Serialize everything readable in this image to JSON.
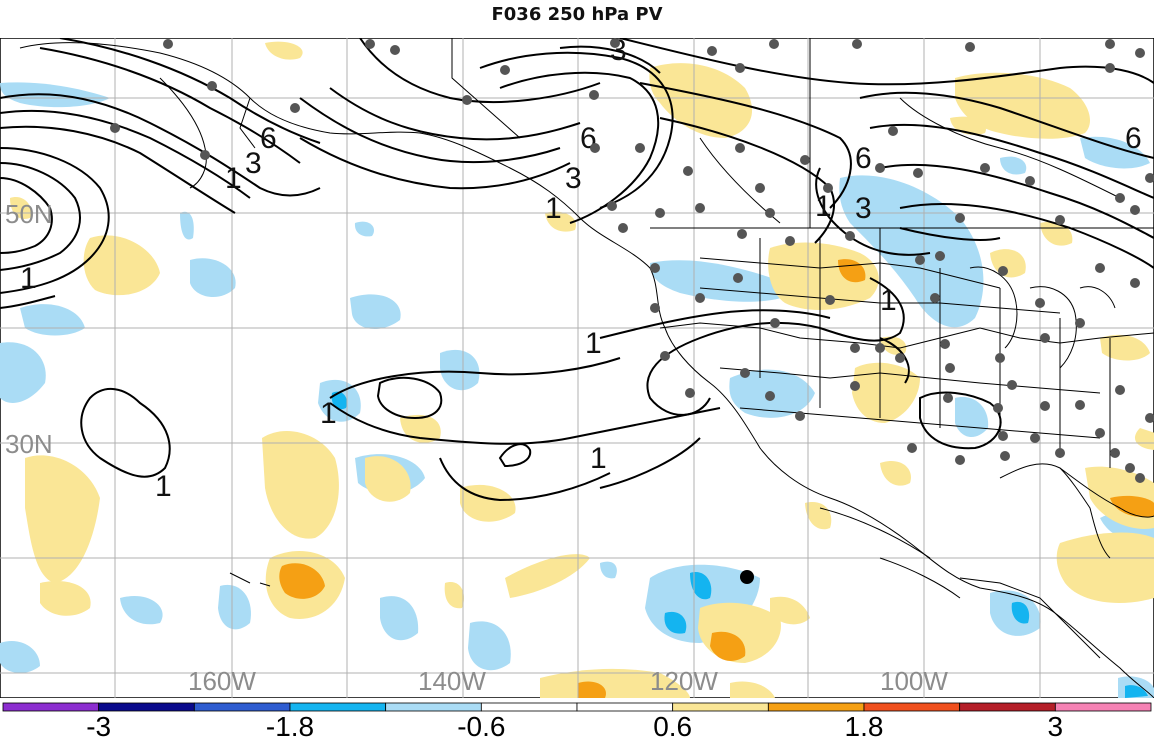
{
  "title": "F036 250 hPa PV",
  "latitude_labels": [
    "50N",
    "30N"
  ],
  "longitude_labels": [
    "160W",
    "140W",
    "120W",
    "100W"
  ],
  "contour_labels": [
    "3",
    "6",
    "1",
    "3",
    "6",
    "1",
    "3",
    "6",
    "1",
    "3",
    "6",
    "1",
    "1",
    "1",
    "1",
    "1",
    "1"
  ],
  "colorbar": {
    "tick_labels": [
      "-3",
      "-1.8",
      "-0.6",
      "0.6",
      "1.8",
      "3"
    ],
    "bins": [
      {
        "color": "#8c2dd0"
      },
      {
        "color": "#0a0a8c"
      },
      {
        "color": "#2e5cd0"
      },
      {
        "color": "#14b4f0"
      },
      {
        "color": "#aadcf5"
      },
      {
        "color": "#ffffff"
      },
      {
        "color": "#ffffff"
      },
      {
        "color": "#fae696"
      },
      {
        "color": "#f5a014"
      },
      {
        "color": "#f0501e"
      },
      {
        "color": "#b41e28"
      },
      {
        "color": "#f582b4"
      }
    ]
  },
  "colors": {
    "light_blue": "#aadcf5",
    "mid_blue": "#14b4f0",
    "light_yellow": "#fae696",
    "orange": "#f5a014",
    "station_dot": "#555555",
    "storm_marker": "#000000"
  }
}
